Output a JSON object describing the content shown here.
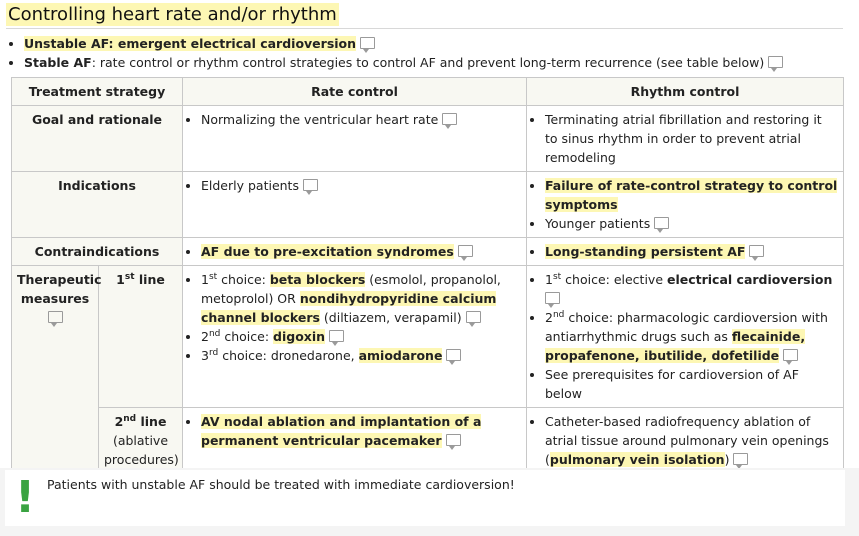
{
  "section": {
    "title": "Controlling heart rate and/or rhythm"
  },
  "bullets": [
    {
      "bold": "Unstable AF",
      "rest": ": emergent electrical cardioversion"
    },
    {
      "bold": "Stable AF",
      "rest": ": rate control or rhythm control strategies to control AF and prevent long-term recurrence (see table below)"
    }
  ],
  "table": {
    "headers": [
      "Treatment strategy",
      "Rate control",
      "Rhythm control"
    ],
    "goal": {
      "label": "Goal and rationale",
      "rate": "Normalizing the ventricular heart rate",
      "rhythm": "Terminating atrial fibrillation and restoring it to sinus rhythm in order to prevent atrial remodeling"
    },
    "indications": {
      "label": "Indications",
      "rate": "Elderly patients",
      "rhythm_1": "Failure of rate-control strategy to control symptoms",
      "rhythm_2": "Younger patients"
    },
    "contra": {
      "label": "Contraindications",
      "rate": "AF due to pre-excitation syndromes",
      "rhythm": "Long-standing persistent AF"
    },
    "therapeutic": {
      "label": "Therapeutic measures",
      "first_line": {
        "num": "1",
        "sup": "st",
        "word": "line",
        "rate": {
          "c1_num": "1",
          "c1_sup": "st",
          "c1_pre": "choice: ",
          "c1_bold": "beta blockers",
          "c1_mid": " (esmolol, propanolol, metoprolol) OR ",
          "c1_bold2": "nondihydropyridine calcium channel blockers",
          "c1_post": " (diltiazem, verapamil)",
          "c2_num": "2",
          "c2_sup": "nd",
          "c2_pre": "choice: ",
          "c2_bold": "digoxin",
          "c3_num": "3",
          "c3_sup": "rd",
          "c3_pre": "choice: dronedarone, ",
          "c3_bold": "amiodarone"
        },
        "rhythm": {
          "c1_num": "1",
          "c1_sup": "st",
          "c1_pre": "choice: elective ",
          "c1_bold": "electrical cardioversion",
          "c2_num": "2",
          "c2_sup": "nd",
          "c2_pre": "choice: pharmacologic cardioversion with antiarrhythmic drugs such as ",
          "c2_bold": "flecainide, propafenone, ibutilide, dofetilide",
          "c3": "See prerequisites for cardioversion of AF below"
        }
      },
      "second_line": {
        "num": "2",
        "sup": "nd",
        "word": "line",
        "sub": "(ablative procedures)",
        "rate": "AV nodal ablation and implantation of a permanent ventricular pacemaker",
        "rhythm_pre": "Catheter-based radiofrequency ablation of atrial tissue around pulmonary vein openings (",
        "rhythm_bold": "pulmonary vein isolation",
        "rhythm_post": ")"
      }
    }
  },
  "note": {
    "icon": "exclamation-icon",
    "icon_char": "!",
    "text": "Patients with unstable AF should be treated with immediate cardioversion!",
    "accent_color": "#3aa341"
  },
  "colors": {
    "highlight": "#fdf7b4",
    "header_bg": "#f8f8f2"
  }
}
